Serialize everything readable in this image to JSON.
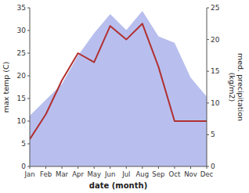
{
  "chart_data": {
    "type": "line",
    "x_label": "date (month)",
    "y_label": "max temp (C)",
    "y2_label": "med. precipitation\n(kg/m2)",
    "categories": [
      "Jan",
      "Feb",
      "Mar",
      "Apr",
      "May",
      "Jun",
      "Jul",
      "Aug",
      "Sep",
      "Oct",
      "Nov",
      "Dec"
    ],
    "series": [
      {
        "type": "area",
        "axis": "y2",
        "color": "#b8bfee",
        "values": [
          8,
          10.5,
          13,
          17.5,
          21,
          24,
          21.5,
          24.5,
          20.5,
          19.5,
          14,
          11
        ]
      },
      {
        "type": "line",
        "color": "#b03030",
        "values": [
          6,
          11.5,
          19,
          25,
          23,
          31,
          28,
          31.5,
          22,
          10,
          10,
          10
        ]
      }
    ],
    "ylim": [
      0,
      35
    ],
    "yticks": [
      0,
      5,
      10,
      15,
      20,
      25,
      30,
      35
    ],
    "y2lim": [
      0,
      25
    ],
    "y2ticks": [
      0,
      5,
      10,
      15,
      20,
      25
    ],
    "grid": false
  }
}
